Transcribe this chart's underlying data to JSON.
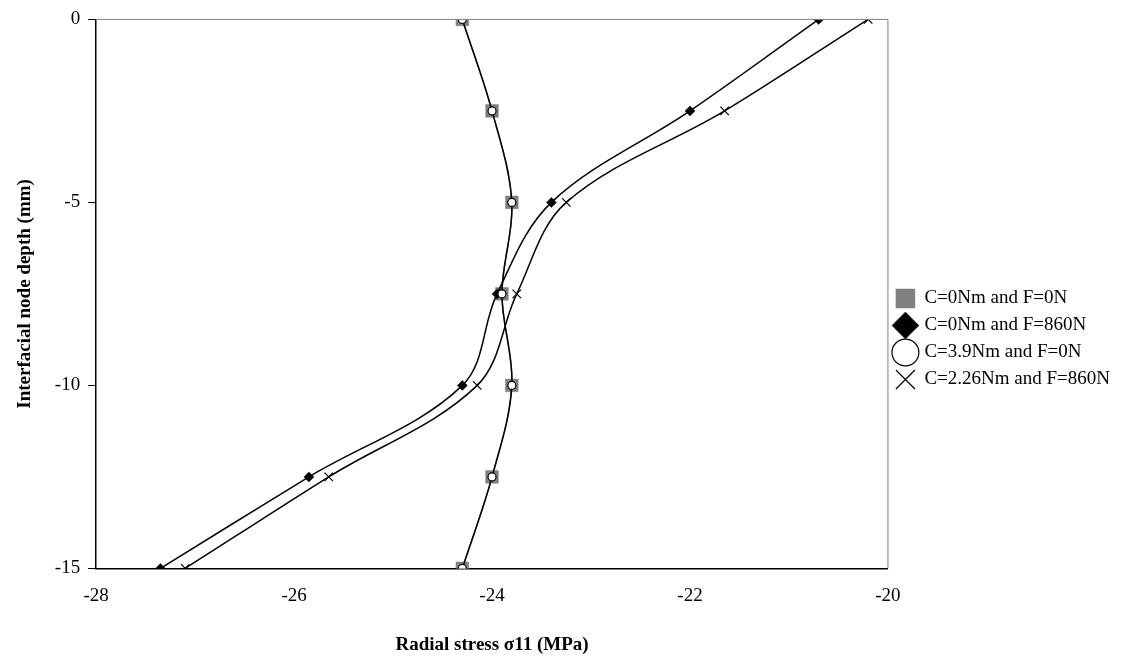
{
  "chart_data": {
    "type": "line",
    "xlabel": "Radial stress σ11 (MPa)",
    "ylabel": "Interfacial node depth (mm)",
    "xlim": [
      -28,
      -20
    ],
    "xticks": [
      -28,
      -26,
      -24,
      -22,
      -20
    ],
    "ylim": [
      -15,
      0
    ],
    "yticks": [
      -15,
      -10,
      -5,
      0
    ],
    "grid": false,
    "legend": "right",
    "series": [
      {
        "name": "C=0Nm and F=0N",
        "color": "#808080",
        "marker": "square",
        "x": [
          -24.3,
          -24.0,
          -23.8,
          -23.9,
          -23.8,
          -24.0,
          -24.3
        ],
        "values": [
          0,
          -2.5,
          -5,
          -7.5,
          -10,
          -12.5,
          -15
        ]
      },
      {
        "name": "C=0Nm and F=860N",
        "color": "#000000",
        "marker": "diamond",
        "x": [
          -20.7,
          -22.0,
          -23.4,
          -23.95,
          -24.3,
          -25.85,
          -27.35
        ],
        "values": [
          0,
          -2.5,
          -5,
          -7.5,
          -10,
          -12.5,
          -15
        ]
      },
      {
        "name": "C=3.9Nm and F=0N",
        "color": "#000000",
        "marker": "circle",
        "x": [
          -24.3,
          -24.0,
          -23.8,
          -23.9,
          -23.8,
          -24.0,
          -24.3
        ],
        "values": [
          0,
          -2.5,
          -5,
          -7.5,
          -10,
          -12.5,
          -15
        ]
      },
      {
        "name": "C=2.26Nm and F=860N",
        "color": "#000000",
        "marker": "cross",
        "x": [
          -20.2,
          -21.65,
          -23.25,
          -23.75,
          -24.15,
          -25.65,
          -27.1
        ],
        "values": [
          0,
          -2.5,
          -5,
          -7.5,
          -10,
          -12.5,
          -15
        ]
      }
    ]
  }
}
